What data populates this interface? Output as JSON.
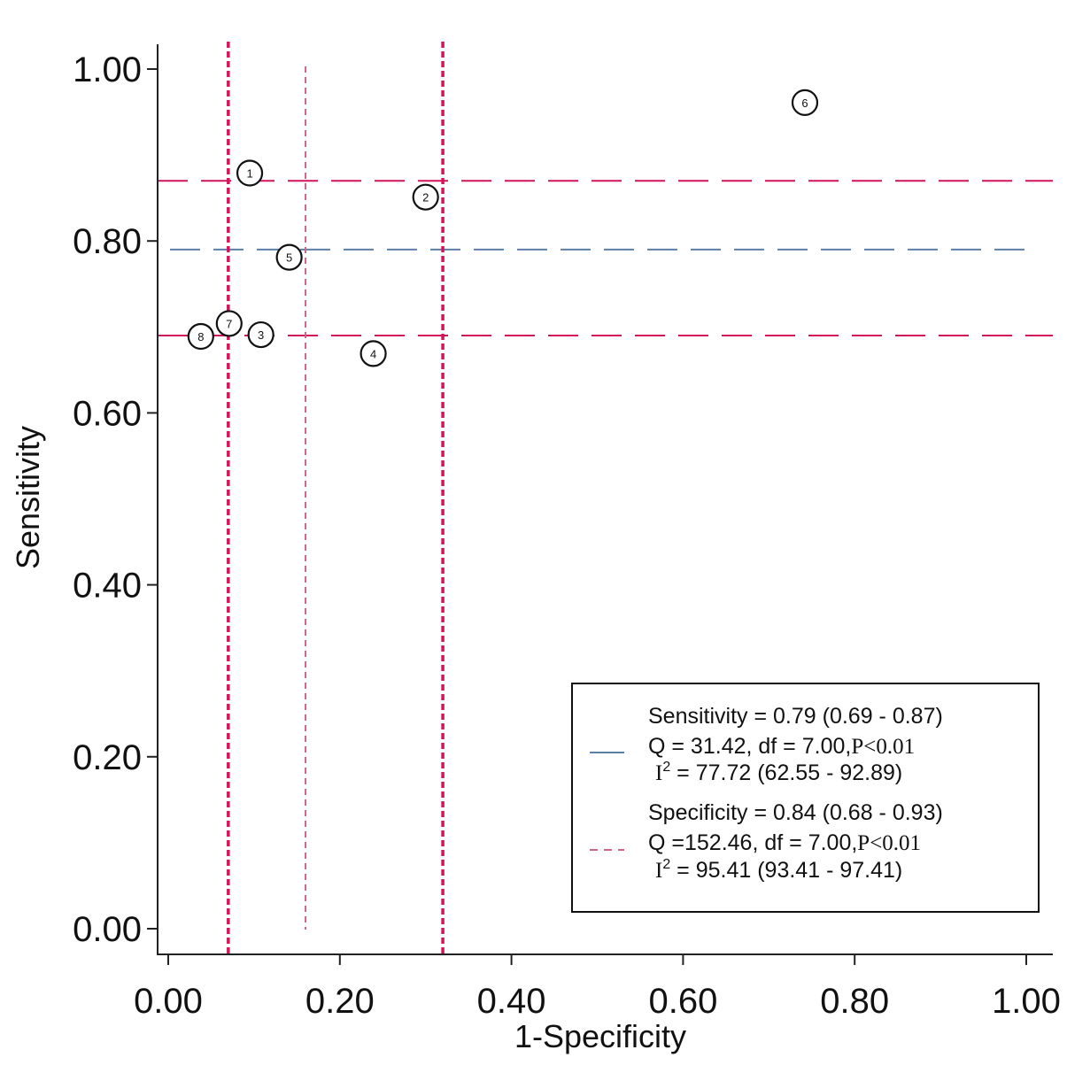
{
  "chart_data": {
    "type": "scatter",
    "xlabel": "1-Specificity",
    "ylabel": "Sensitivity",
    "xlim": [
      0,
      1
    ],
    "ylim": [
      0,
      1
    ],
    "x_ticks": [
      "0.00",
      "0.20",
      "0.40",
      "0.60",
      "0.80",
      "1.00"
    ],
    "y_ticks": [
      "0.00",
      "0.20",
      "0.40",
      "0.60",
      "0.80",
      "1.00"
    ],
    "points": [
      {
        "label": "1",
        "x": 0.095,
        "y": 0.879
      },
      {
        "label": "2",
        "x": 0.3,
        "y": 0.851
      },
      {
        "label": "3",
        "x": 0.108,
        "y": 0.691
      },
      {
        "label": "4",
        "x": 0.239,
        "y": 0.669
      },
      {
        "label": "5",
        "x": 0.141,
        "y": 0.781
      },
      {
        "label": "6",
        "x": 0.742,
        "y": 0.961
      },
      {
        "label": "7",
        "x": 0.071,
        "y": 0.704
      },
      {
        "label": "8",
        "x": 0.038,
        "y": 0.689
      }
    ],
    "sensitivity_lines": {
      "pooled": 0.79,
      "lower": 0.69,
      "upper": 0.87
    },
    "specificity_lines": {
      "pooled_1_minus_spec": 0.16,
      "lower_1_minus_spec": 0.07,
      "upper_1_minus_spec": 0.32
    },
    "colors": {
      "sensitivity": "#5b7fa6",
      "specificity_ci": "#d4145a",
      "specificity_band": "#cc6688",
      "axis": "#222222"
    },
    "legend": {
      "position": "bottom-right",
      "sensitivity": {
        "line1": "Sensitivity = 0.79 (0.69 - 0.87)",
        "line2_prefix": "Q = 31.42, df = 7.00,",
        "line2_p": "P<0.01",
        "line3_i": "I",
        "line3_sup": "2",
        "line3_rest": " = 77.72 (62.55 - 92.89)"
      },
      "specificity": {
        "line1": "Specificity = 0.84 (0.68 - 0.93)",
        "line2_prefix": "Q =152.46, df = 7.00,",
        "line2_p": "P<0.01",
        "line3_i": "I",
        "line3_sup": "2",
        "line3_rest": " = 95.41 (93.41 - 97.41)"
      }
    }
  }
}
